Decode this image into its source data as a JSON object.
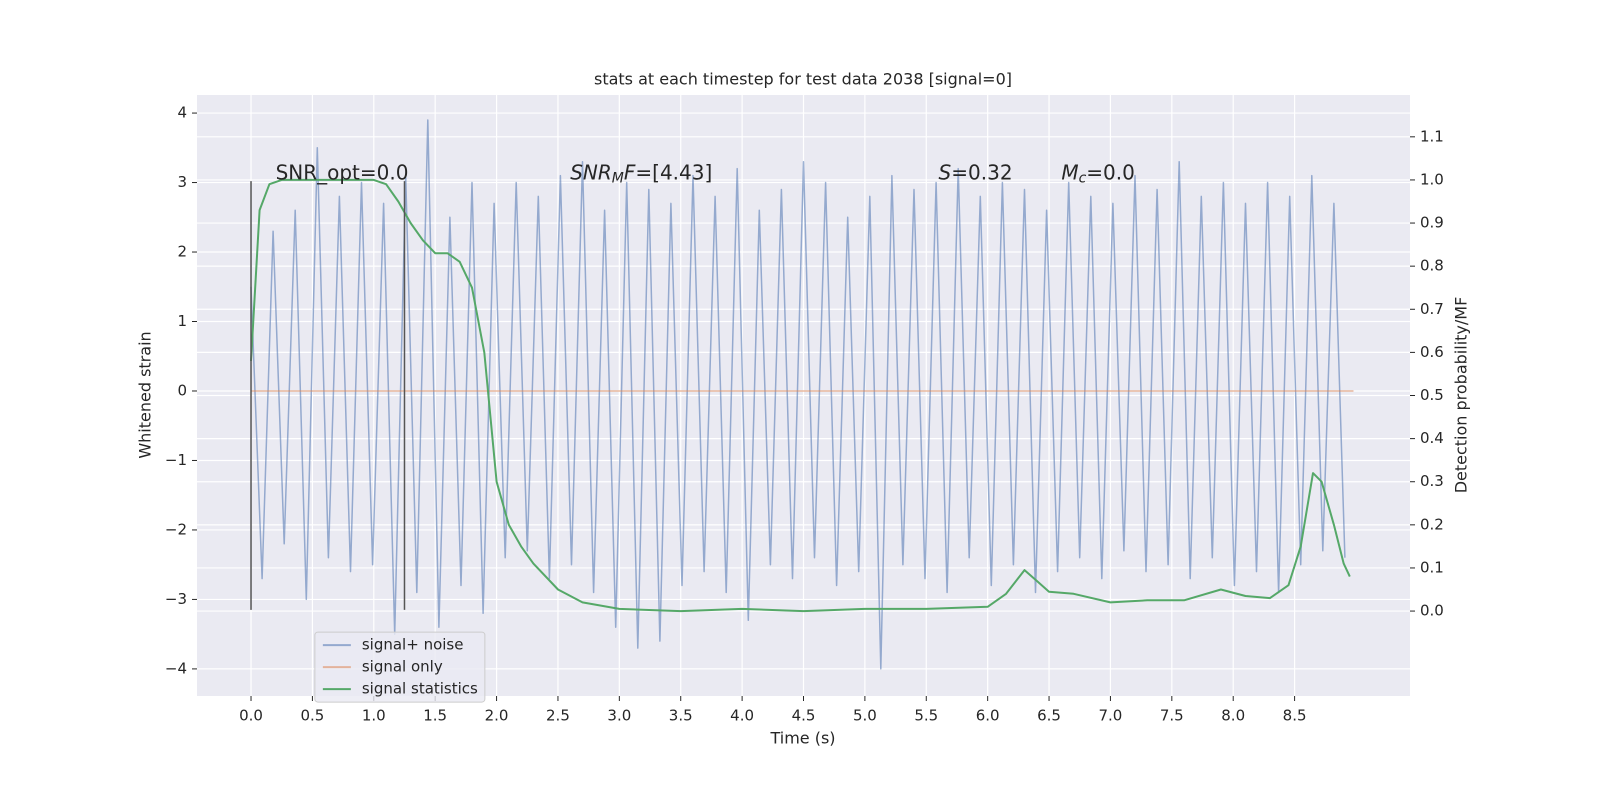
{
  "chart_data": {
    "type": "line",
    "title": "stats at each timestep for test data 2038 [signal=0]",
    "xlabel": "Time (s)",
    "ylabel": "Whitened strain",
    "y2label": "Detection probability/MF",
    "xlim": [
      -0.44,
      9.44
    ],
    "ylim": [
      -4.39,
      4.26
    ],
    "y2lim": [
      -0.197,
      1.197
    ],
    "xticks": [
      {
        "value": 0,
        "label": "0.0"
      },
      0.5,
      {
        "value": 1,
        "label": "1.0"
      },
      1.5,
      {
        "value": 2,
        "label": "2.0"
      },
      2.5,
      {
        "value": 3,
        "label": "3.0"
      },
      3.5,
      {
        "value": 4,
        "label": "4.0"
      },
      4.5,
      {
        "value": 5,
        "label": "5.0"
      },
      5.5,
      {
        "value": 6,
        "label": "6.0"
      },
      6.5,
      {
        "value": 7,
        "label": "7.0"
      },
      7.5,
      {
        "value": 8,
        "label": "8.0"
      },
      8.5
    ],
    "yticks": [
      {
        "value": -4,
        "label": "−4"
      },
      {
        "value": -3,
        "label": "−3"
      },
      {
        "value": -2,
        "label": "−2"
      },
      {
        "value": -1,
        "label": "−1"
      },
      0,
      1,
      2,
      3,
      4
    ],
    "y2ticks": [
      {
        "value": 0,
        "label": "0.0"
      },
      0.1,
      0.2,
      0.3,
      0.4,
      0.5,
      0.6,
      0.7,
      0.8,
      0.9,
      {
        "value": 1,
        "label": "1.0"
      },
      1.1
    ],
    "grid": true,
    "legend": "lower left",
    "series": [
      {
        "name": "signal+ noise",
        "color": "#4c72b0",
        "x": [
          0,
          0.09,
          0.18,
          0.27,
          0.36,
          0.45,
          0.54,
          0.63,
          0.72,
          0.81,
          0.9,
          0.99,
          1.08,
          1.17,
          1.26,
          1.35,
          1.44,
          1.53,
          1.62,
          1.71,
          1.8,
          1.89,
          1.98,
          2.07,
          2.16,
          2.25,
          2.34,
          2.43,
          2.52,
          2.61,
          2.7,
          2.79,
          2.88,
          2.97,
          3.06,
          3.15,
          3.24,
          3.33,
          3.42,
          3.51,
          3.6,
          3.69,
          3.78,
          3.87,
          3.96,
          4.05,
          4.14,
          4.23,
          4.32,
          4.41,
          4.5,
          4.59,
          4.68,
          4.77,
          4.86,
          4.95,
          5.04,
          5.13,
          5.22,
          5.31,
          5.4,
          5.49,
          5.58,
          5.67,
          5.76,
          5.85,
          5.94,
          6.03,
          6.12,
          6.21,
          6.3,
          6.39,
          6.48,
          6.57,
          6.66,
          6.75,
          6.84,
          6.93,
          7.02,
          7.11,
          7.2,
          7.29,
          7.38,
          7.47,
          7.56,
          7.65,
          7.74,
          7.83,
          7.92,
          8.01,
          8.1,
          8.19,
          8.28,
          8.37,
          8.46,
          8.55,
          8.64,
          8.73,
          8.82,
          8.91
        ],
        "values": [
          1.5,
          -2.7,
          2.3,
          -2.2,
          2.6,
          -3.0,
          3.5,
          -2.4,
          2.8,
          -2.6,
          3.0,
          -2.5,
          2.7,
          -3.5,
          3.1,
          -2.9,
          3.9,
          -3.4,
          2.5,
          -2.8,
          3.0,
          -3.2,
          2.7,
          -2.4,
          3.0,
          -2.3,
          2.8,
          -2.7,
          3.1,
          -2.5,
          3.3,
          -2.9,
          2.6,
          -3.4,
          3.0,
          -3.7,
          2.9,
          -3.6,
          2.7,
          -2.8,
          3.1,
          -2.6,
          2.8,
          -2.9,
          3.2,
          -3.3,
          2.6,
          -2.5,
          2.9,
          -2.7,
          3.3,
          -2.4,
          3.0,
          -2.8,
          2.5,
          -2.6,
          2.8,
          -4.0,
          3.1,
          -2.5,
          2.9,
          -2.7,
          3.0,
          -2.9,
          3.2,
          -2.4,
          2.8,
          -2.8,
          3.0,
          -2.5,
          2.9,
          -2.9,
          2.6,
          -2.6,
          3.0,
          -2.4,
          2.8,
          -2.7,
          2.7,
          -2.3,
          3.1,
          -2.6,
          2.9,
          -2.5,
          3.3,
          -2.7,
          2.8,
          -2.4,
          3.0,
          -2.8,
          2.7,
          -2.6,
          3.0,
          -2.9,
          2.8,
          -2.5,
          3.1,
          -2.3,
          2.7,
          -2.4
        ]
      },
      {
        "name": "signal only",
        "color": "#dd8452",
        "x": [
          0,
          8.98
        ],
        "values": [
          0,
          0
        ]
      },
      {
        "name": "signal statistics",
        "color": "#55a868",
        "axis": "y2",
        "x": [
          0,
          0.07,
          0.15,
          0.25,
          0.5,
          1.0,
          1.1,
          1.2,
          1.3,
          1.4,
          1.5,
          1.6,
          1.7,
          1.8,
          1.9,
          2.0,
          2.1,
          2.2,
          2.3,
          2.5,
          2.7,
          3.0,
          3.5,
          4.0,
          4.5,
          5.0,
          5.5,
          6.0,
          6.15,
          6.3,
          6.4,
          6.5,
          6.7,
          7.0,
          7.3,
          7.6,
          7.9,
          8.1,
          8.3,
          8.45,
          8.55,
          8.65,
          8.72,
          8.82,
          8.9,
          8.95
        ],
        "values": [
          0.58,
          0.93,
          0.99,
          1.0,
          1.0,
          1.0,
          0.99,
          0.95,
          0.9,
          0.86,
          0.83,
          0.83,
          0.81,
          0.75,
          0.6,
          0.3,
          0.2,
          0.15,
          0.11,
          0.05,
          0.02,
          0.005,
          0.0,
          0.005,
          0.0,
          0.005,
          0.005,
          0.01,
          0.04,
          0.095,
          0.07,
          0.045,
          0.04,
          0.02,
          0.025,
          0.025,
          0.05,
          0.035,
          0.03,
          0.06,
          0.15,
          0.32,
          0.3,
          0.2,
          0.11,
          0.08
        ]
      }
    ],
    "vlines": {
      "x": [
        0,
        1.25
      ],
      "ymin": -3.15,
      "ymax": 3.02
    },
    "annotations": [
      {
        "x": 0.2,
        "y": 3.0,
        "parts": [
          {
            "text": "SNR_opt=0.0"
          }
        ]
      },
      {
        "x": 2.6,
        "y": 3.0,
        "parts": [
          {
            "text": "SNR",
            "italic": true
          },
          {
            "text": "M",
            "italic": true,
            "sub": true
          },
          {
            "text": "F",
            "italic": true
          },
          {
            "text": "=[4.43]"
          }
        ]
      },
      {
        "x": 5.6,
        "y": 3.0,
        "parts": [
          {
            "text": "S",
            "italic": true
          },
          {
            "text": "=0.32"
          }
        ]
      },
      {
        "x": 6.6,
        "y": 3.0,
        "parts": [
          {
            "text": "M",
            "italic": true
          },
          {
            "text": "c",
            "italic": true,
            "sub": true
          },
          {
            "text": "=0.0"
          }
        ]
      }
    ]
  }
}
